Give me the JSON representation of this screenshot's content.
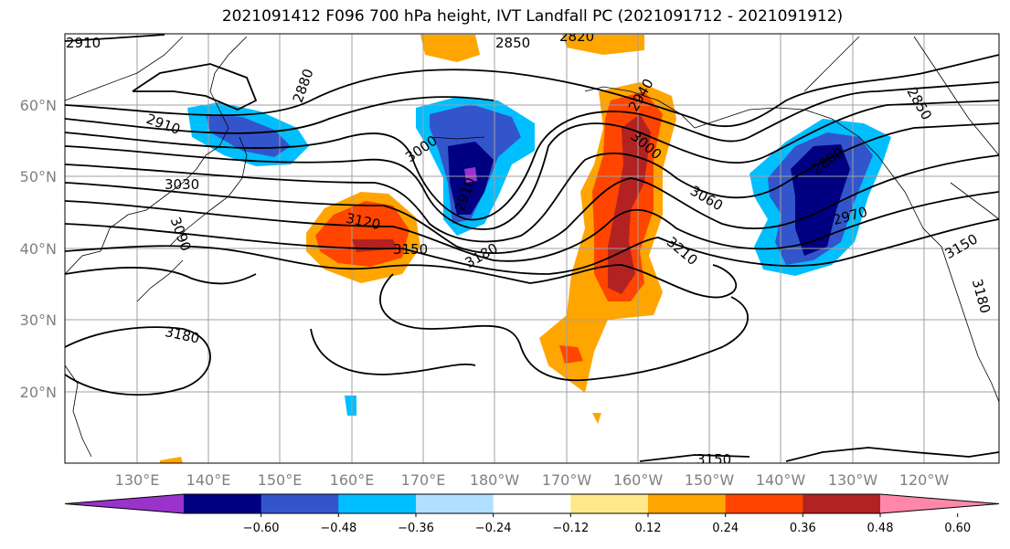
{
  "title": "2021091412 F096 700 hPa height, IVT Landfall PC (2021091712 - 2021091912)",
  "lat_labels": [
    "60°N",
    "50°N",
    "40°N",
    "30°N",
    "20°N"
  ],
  "lon_labels": [
    "130°E",
    "140°E",
    "150°E",
    "160°E",
    "170°E",
    "180°W",
    "170°W",
    "160°W",
    "150°W",
    "140°W",
    "130°W",
    "120°W"
  ],
  "contour_labels": [
    "2910",
    "2850",
    "2820",
    "2880",
    "2910",
    "3000",
    "2940",
    "3000",
    "2850",
    "3030",
    "3060",
    "2880",
    "2970",
    "2910",
    "3120",
    "3150",
    "3180",
    "3210",
    "3150",
    "3090",
    "3180",
    "3180",
    "3150"
  ],
  "colorbar": {
    "colors": [
      "#9933cc",
      "#000080",
      "#3355cc",
      "#00bfff",
      "#b0e0ff",
      "#ffffff",
      "#ffe88a",
      "#ffa500",
      "#ff4500",
      "#b22222",
      "#ff88aa"
    ],
    "ticks": [
      "−0.60",
      "−0.48",
      "−0.36",
      "−0.24",
      "−0.12",
      "0.12",
      "0.24",
      "0.36",
      "0.48",
      "0.60"
    ]
  }
}
